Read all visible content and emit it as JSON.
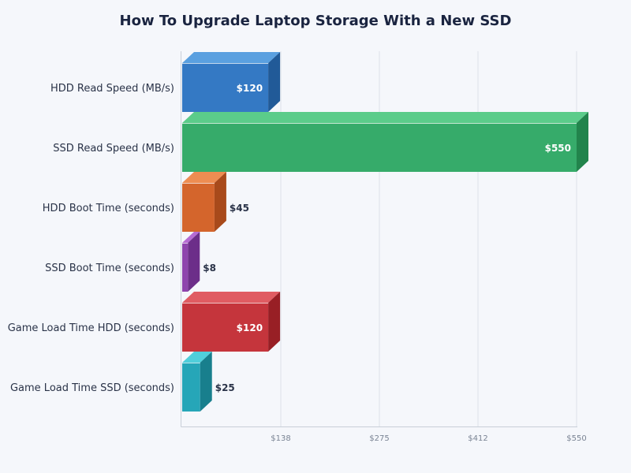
{
  "chart_data": {
    "type": "bar",
    "orientation": "horizontal",
    "style": "3d",
    "title": "How To Upgrade Laptop Storage With a New SSD",
    "xlabel": "",
    "ylabel": "",
    "categories": [
      "HDD Read Speed (MB/s)",
      "SSD Read Speed (MB/s)",
      "HDD Boot Time (seconds)",
      "SSD Boot Time (seconds)",
      "Game Load Time HDD (seconds)",
      "Game Load Time SSD (seconds)"
    ],
    "values": [
      120,
      550,
      45,
      8,
      120,
      25
    ],
    "value_labels": [
      "$120",
      "$550",
      "$45",
      "$8",
      "$120",
      "$25"
    ],
    "colors": [
      {
        "front": "#3479c4",
        "top": "#5aa0e0",
        "side": "#215a98"
      },
      {
        "front": "#36ab6a",
        "top": "#5bcc8a",
        "side": "#22844c"
      },
      {
        "front": "#d4652c",
        "top": "#ee8d52",
        "side": "#a84a1b"
      },
      {
        "front": "#8e44ad",
        "top": "#b66bd3",
        "side": "#6c2e89"
      },
      {
        "front": "#c5353c",
        "top": "#e05c62",
        "side": "#981f25"
      },
      {
        "front": "#26a6b8",
        "top": "#50cfdb",
        "side": "#187f8d"
      }
    ],
    "xlim": [
      0,
      550
    ],
    "xticks": [
      "$138",
      "$275",
      "$412",
      "$550"
    ],
    "xtick_values": [
      137.5,
      275,
      412.5,
      550
    ],
    "grid": true,
    "legend": null
  }
}
